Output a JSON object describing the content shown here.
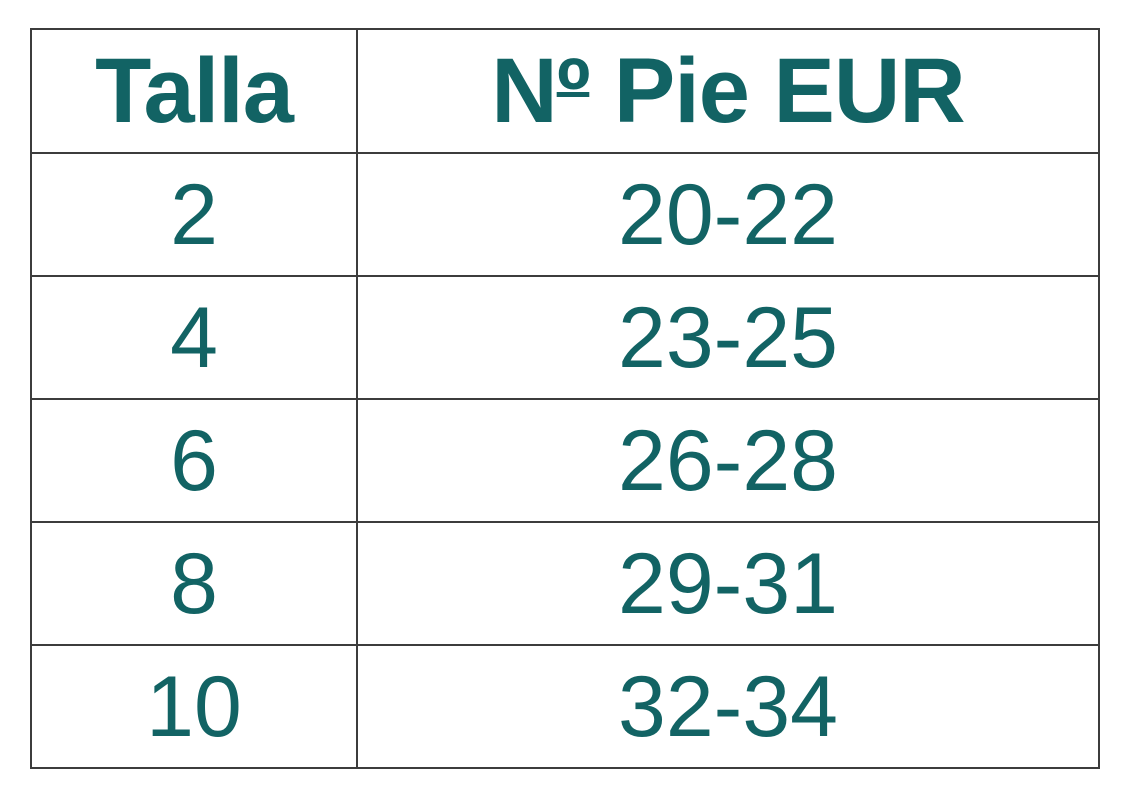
{
  "colors": {
    "text": "#126364",
    "border": "#3C3C3C",
    "background": "#FFFFFF"
  },
  "table": {
    "header": {
      "col1": "Talla",
      "col2": "Nº Pie EUR",
      "col2_parts": {
        "n": "N",
        "ordinal": "º",
        "rest": " Pie EUR"
      }
    },
    "rows": [
      {
        "talla": "2",
        "pie_eur": "20-22"
      },
      {
        "talla": "4",
        "pie_eur": "23-25"
      },
      {
        "talla": "6",
        "pie_eur": "26-28"
      },
      {
        "talla": "8",
        "pie_eur": "29-31"
      },
      {
        "talla": "10",
        "pie_eur": "32-34"
      }
    ]
  },
  "chart_data": {
    "type": "table",
    "columns": [
      "Talla",
      "Nº Pie EUR"
    ],
    "rows": [
      [
        "2",
        "20-22"
      ],
      [
        "4",
        "23-25"
      ],
      [
        "6",
        "26-28"
      ],
      [
        "8",
        "29-31"
      ],
      [
        "10",
        "32-34"
      ]
    ]
  }
}
